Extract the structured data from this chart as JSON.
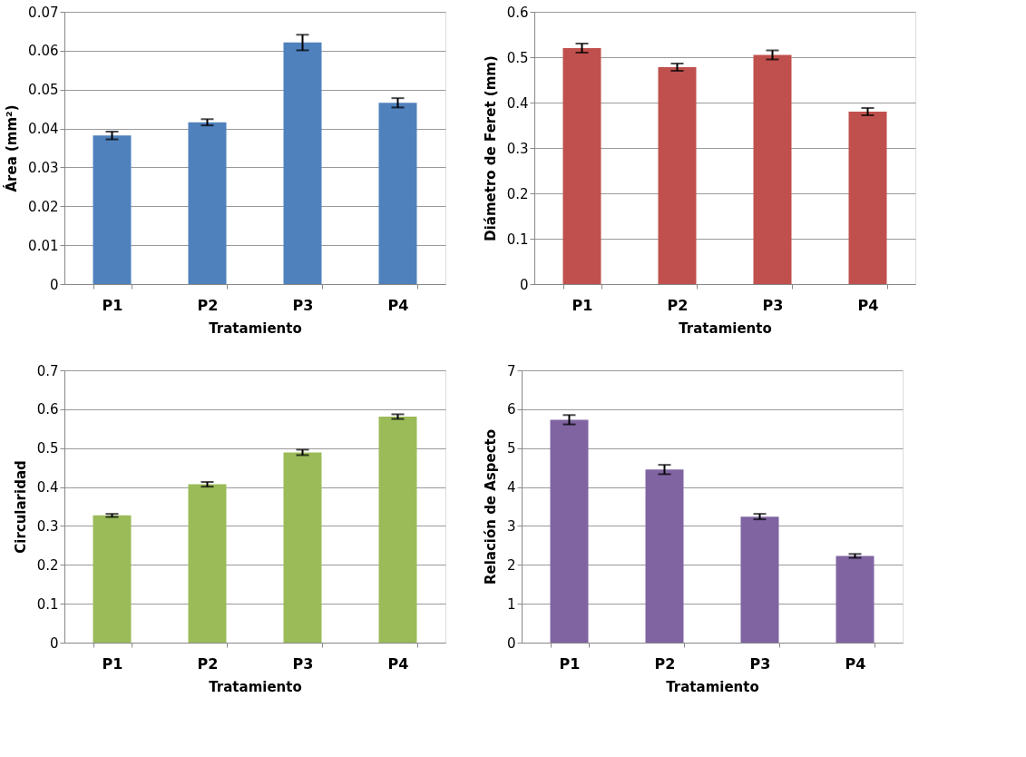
{
  "chart_data": [
    {
      "type": "bar",
      "xlabel": "Tratamiento",
      "ylabel": "Área (mm²)",
      "categories": [
        "P1",
        "P2",
        "P3",
        "P4"
      ],
      "values": [
        0.0382,
        0.0416,
        0.0621,
        0.0466
      ],
      "errors": [
        0.001,
        0.0008,
        0.002,
        0.0012
      ],
      "color": "#4f81bd",
      "ylim": [
        0,
        0.07
      ],
      "yticks": [
        {
          "value": 0,
          "label": "0"
        },
        0.01,
        0.02,
        0.03,
        0.04,
        0.05,
        0.06,
        0.07
      ],
      "grid": "y"
    },
    {
      "type": "bar",
      "xlabel": "Tratamiento",
      "ylabel": "Diámetro de Feret (mm)",
      "categories": [
        "P1",
        "P2",
        "P3",
        "P4"
      ],
      "values": [
        0.52,
        0.478,
        0.505,
        0.38
      ],
      "errors": [
        0.01,
        0.008,
        0.01,
        0.008
      ],
      "color": "#c0504d",
      "ylim": [
        0,
        0.6
      ],
      "yticks": [
        0,
        0.1,
        0.2,
        0.3,
        0.4,
        0.5,
        0.6
      ],
      "grid": "y"
    },
    {
      "type": "bar",
      "xlabel": "Tratamiento",
      "ylabel": "Circularidad",
      "categories": [
        "P1",
        "P2",
        "P3",
        "P4"
      ],
      "values": [
        0.327,
        0.407,
        0.489,
        0.581
      ],
      "errors": [
        0.004,
        0.006,
        0.007,
        0.006
      ],
      "color": "#9bbb59",
      "ylim": [
        0,
        0.7
      ],
      "yticks": [
        0,
        0.1,
        0.2,
        0.3,
        0.4,
        0.5,
        0.6,
        0.7
      ],
      "grid": "y"
    },
    {
      "type": "bar",
      "xlabel": "Tratamiento",
      "ylabel": "Relación de Aspecto",
      "categories": [
        "P1",
        "P2",
        "P3",
        "P4"
      ],
      "values": [
        5.73,
        4.45,
        3.24,
        2.23
      ],
      "errors": [
        0.12,
        0.12,
        0.07,
        0.05
      ],
      "color": "#8064a2",
      "ylim": [
        0,
        7
      ],
      "yticks": [
        0,
        1,
        2,
        3,
        4,
        5,
        6,
        7
      ],
      "grid": "y"
    }
  ]
}
